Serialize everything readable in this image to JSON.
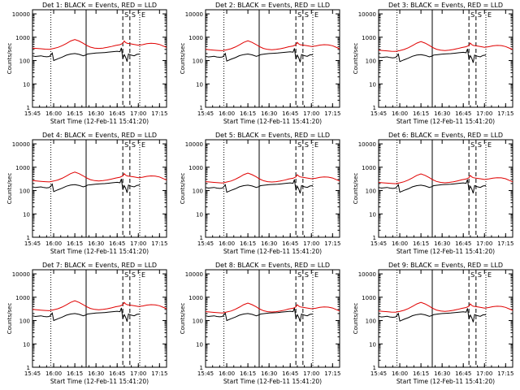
{
  "figure": {
    "xlabel": "Start Time (12-Feb-11 15:41:20)",
    "ylabel": "Counts/sec",
    "legend": "BLACK = Events, RED = LLD"
  },
  "chart_data": {
    "type": "line",
    "x_ticks": [
      "15:45",
      "16:00",
      "16:15",
      "16:30",
      "16:45",
      "17:00",
      "17:15"
    ],
    "x_tick_minutes": [
      0,
      15,
      30,
      45,
      60,
      75,
      90
    ],
    "xlim_minutes": [
      0,
      95
    ],
    "y_ticks": [
      "1",
      "10",
      "100",
      "1000",
      "10000"
    ],
    "ylim": [
      1,
      15000
    ],
    "yscale": "log",
    "markers": [
      {
        "type": "dotted",
        "minute": 13,
        "label": ""
      },
      {
        "type": "solid",
        "minute": 38,
        "label": ""
      },
      {
        "type": "dashed",
        "minute": 64,
        "label": "S"
      },
      {
        "type": "dashed",
        "minute": 69,
        "label": "S"
      },
      {
        "type": "dotted",
        "minute": 76,
        "label": "E"
      }
    ],
    "panels": [
      {
        "title": "Det 1:",
        "red_peak": 800,
        "black_peak": 200
      },
      {
        "title": "Det 2:",
        "red_peak": 700,
        "black_peak": 190
      },
      {
        "title": "Det 3:",
        "red_peak": 650,
        "black_peak": 180
      },
      {
        "title": "Det 4:",
        "red_peak": 620,
        "black_peak": 180
      },
      {
        "title": "Det 5:",
        "red_peak": 560,
        "black_peak": 170
      },
      {
        "title": "Det 6:",
        "red_peak": 520,
        "black_peak": 170
      },
      {
        "title": "Det 7:",
        "red_peak": 700,
        "black_peak": 200
      },
      {
        "title": "Det 8:",
        "red_peak": 560,
        "black_peak": 200
      },
      {
        "title": "Det 9:",
        "red_peak": 600,
        "black_peak": 190
      }
    ],
    "series": [
      {
        "name": "Events",
        "color": "#000000",
        "minutes": [
          0,
          2,
          4,
          6,
          8,
          10,
          12,
          13,
          14,
          15,
          18,
          21,
          24,
          27,
          30,
          33,
          36,
          38,
          39,
          42,
          45,
          48,
          51,
          54,
          57,
          60,
          62,
          63,
          64,
          65,
          66,
          67,
          68,
          69,
          70,
          72,
          74,
          76
        ],
        "values": [
          160,
          150,
          155,
          160,
          150,
          145,
          150,
          175,
          210,
          100,
          120,
          140,
          170,
          190,
          200,
          185,
          160,
          175,
          190,
          200,
          210,
          215,
          220,
          230,
          240,
          250,
          240,
          350,
          120,
          180,
          140,
          90,
          190,
          180,
          170,
          160,
          185,
          190
        ]
      },
      {
        "name": "LLD",
        "color": "#e00000",
        "minutes": [
          0,
          3,
          6,
          9,
          12,
          15,
          18,
          21,
          24,
          27,
          30,
          33,
          36,
          38,
          41,
          44,
          47,
          50,
          53,
          56,
          59,
          62,
          64,
          65,
          66,
          67,
          69,
          72,
          75,
          78,
          81,
          84,
          87,
          90,
          93,
          95
        ],
        "values": [
          300,
          290,
          280,
          270,
          265,
          290,
          320,
          380,
          470,
          600,
          700,
          600,
          480,
          400,
          330,
          300,
          290,
          300,
          320,
          350,
          390,
          420,
          480,
          600,
          520,
          480,
          460,
          430,
          400,
          420,
          460,
          480,
          470,
          430,
          360,
          320
        ]
      }
    ]
  }
}
